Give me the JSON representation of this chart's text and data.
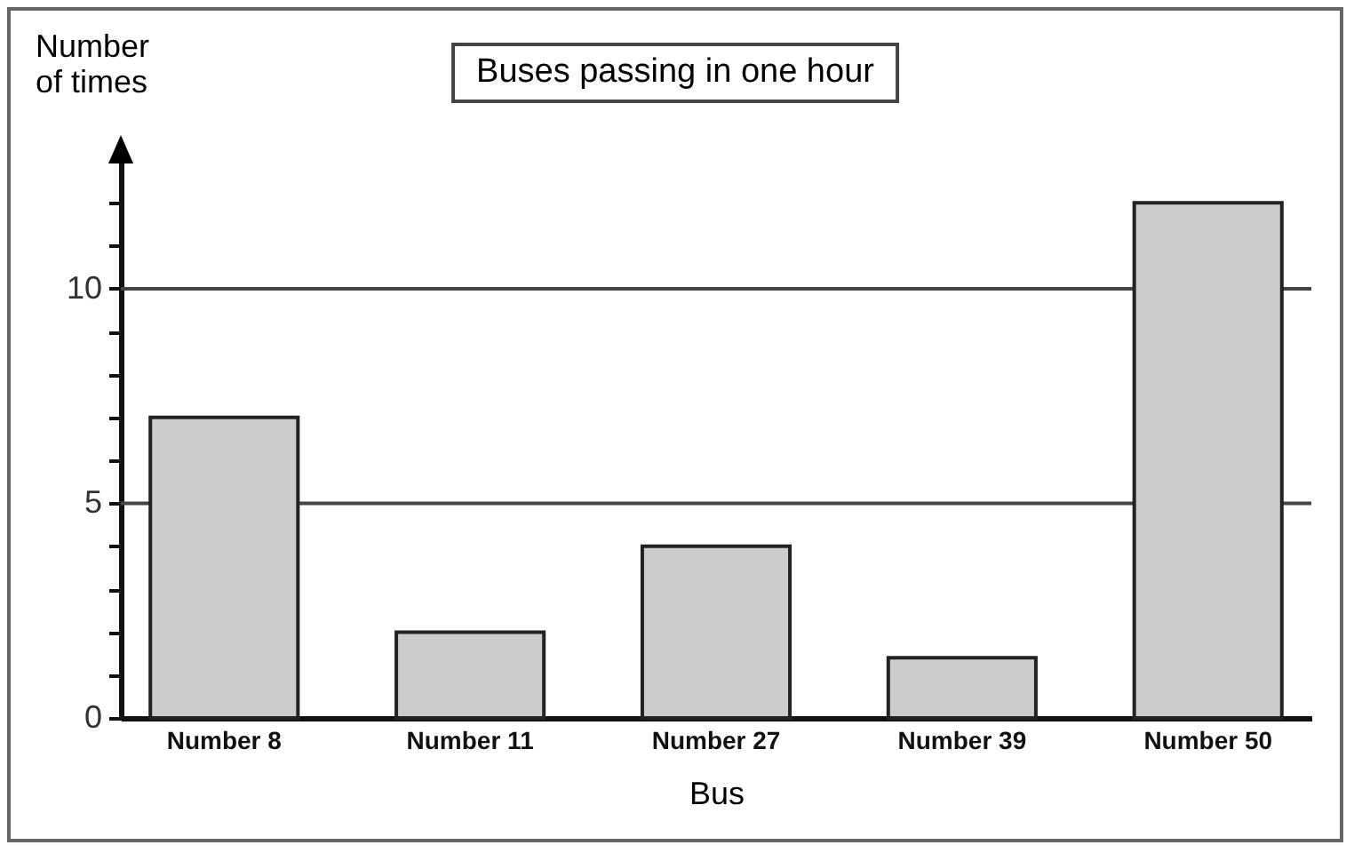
{
  "chart_data": {
    "type": "bar",
    "title": "Buses passing in one hour",
    "xlabel": "Bus",
    "ylabel": "Number of times",
    "categories": [
      "Number 8",
      "Number 11",
      "Number 27",
      "Number 39",
      "Number 50"
    ],
    "values": [
      7,
      2,
      4,
      1.4,
      12
    ],
    "color": "#cccccc",
    "ylim": [
      0,
      13
    ],
    "yticks": [
      0,
      {
        "value": 1,
        "label": null
      },
      {
        "value": 2,
        "label": null
      },
      {
        "value": 3,
        "label": null
      },
      {
        "value": 4,
        "label": null
      },
      5,
      {
        "value": 6,
        "label": null
      },
      {
        "value": 7,
        "label": null
      },
      {
        "value": 8,
        "label": null
      },
      {
        "value": 9,
        "label": null
      },
      10,
      {
        "value": 11,
        "label": null
      },
      {
        "value": 12,
        "label": null
      }
    ],
    "grid": "y"
  }
}
